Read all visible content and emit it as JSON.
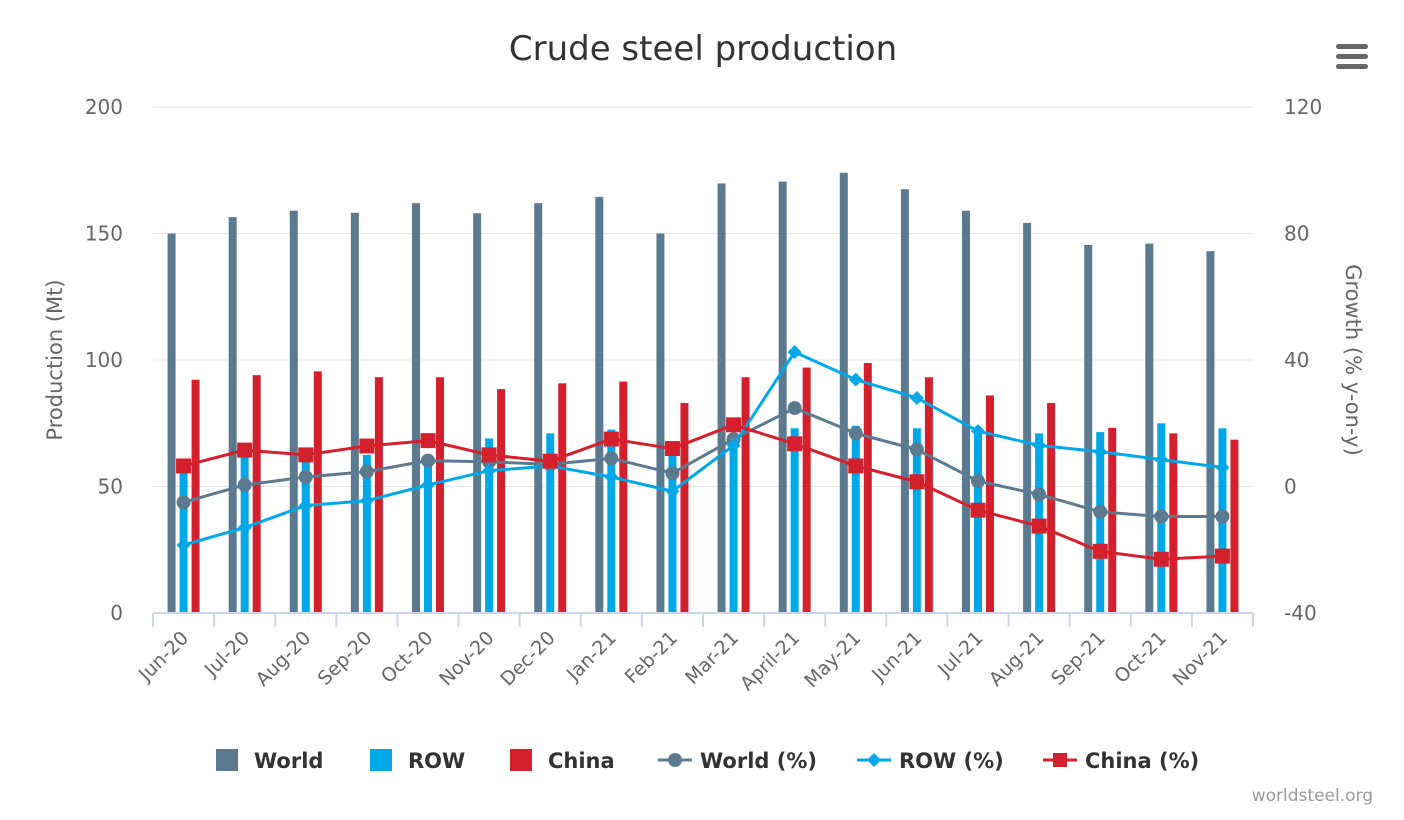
{
  "chart_data": {
    "type": "bar",
    "title": "Crude steel production",
    "ylabel": "Production (Mt)",
    "y2label": "Growth (% y-on-y)",
    "ylim": [
      0,
      200
    ],
    "y2lim": [
      -40,
      120
    ],
    "yticks": [
      0,
      50,
      100,
      150,
      200
    ],
    "y2ticks": [
      -40,
      0,
      40,
      80,
      120
    ],
    "grid": true,
    "legend_position": "bottom-center",
    "categories": [
      "Jun-20",
      "Jul-20",
      "Aug-20",
      "Sep-20",
      "Oct-20",
      "Nov-20",
      "Dec-20",
      "Jan-21",
      "Feb-21",
      "Mar-21",
      "April-21",
      "May-21",
      "Jun-21",
      "Jul-21",
      "Aug-21",
      "Sep-21",
      "Oct-21",
      "Nov-21"
    ],
    "bar_series": [
      {
        "name": "World",
        "color": "#5c7a8f",
        "axis": "left",
        "values": [
          150.0,
          156.5,
          159.0,
          158.2,
          162.0,
          158.0,
          162.0,
          164.5,
          150.0,
          169.8,
          170.5,
          174.0,
          167.5,
          159.0,
          154.2,
          145.5,
          146.0,
          143.0
        ]
      },
      {
        "name": "ROW",
        "color": "#00a8e8",
        "axis": "left",
        "values": [
          55.5,
          63.5,
          61.5,
          62.5,
          60.5,
          69.0,
          71.0,
          72.5,
          67.5,
          69.5,
          73.0,
          74.0,
          73.0,
          72.5,
          71.0,
          71.5,
          75.0,
          73.0
        ]
      },
      {
        "name": "China",
        "color": "#d4202d",
        "axis": "left",
        "values": [
          92.2,
          94.0,
          95.5,
          93.2,
          93.2,
          88.5,
          90.8,
          91.5,
          83.0,
          93.2,
          97.0,
          98.8,
          93.2,
          86.0,
          83.0,
          73.2,
          71.0,
          68.5
        ]
      }
    ],
    "line_series": [
      {
        "name": "World (%)",
        "color": "#5c7a8f",
        "marker": "circle",
        "axis": "right",
        "values": [
          -5.0,
          0.5,
          3.0,
          4.7,
          8.2,
          7.8,
          7.0,
          8.9,
          4.2,
          15.0,
          24.8,
          16.8,
          11.7,
          1.7,
          -2.5,
          -8.0,
          -9.5,
          -9.5
        ]
      },
      {
        "name": "ROW (%)",
        "color": "#00a8e8",
        "marker": "diamond",
        "axis": "right",
        "values": [
          -18.5,
          -13.0,
          -6.0,
          -4.5,
          0.5,
          5.0,
          6.5,
          3.0,
          -1.5,
          13.0,
          42.5,
          33.8,
          28.0,
          17.5,
          13.0,
          11.0,
          8.5,
          6.0
        ]
      },
      {
        "name": "China (%)",
        "color": "#d4202d",
        "marker": "square",
        "axis": "right",
        "values": [
          6.5,
          11.5,
          10.0,
          12.8,
          14.5,
          10.0,
          8.0,
          15.0,
          12.0,
          19.5,
          13.5,
          6.5,
          1.5,
          -7.5,
          -12.5,
          -20.5,
          -23.0,
          -22.0
        ]
      }
    ]
  },
  "legend": [
    {
      "label": "World",
      "kind": "bar",
      "color": "#5c7a8f"
    },
    {
      "label": "ROW",
      "kind": "bar",
      "color": "#00a8e8"
    },
    {
      "label": "China",
      "kind": "bar",
      "color": "#d4202d"
    },
    {
      "label": "World (%)",
      "kind": "line",
      "marker": "circle",
      "color": "#5c7a8f"
    },
    {
      "label": "ROW (%)",
      "kind": "line",
      "marker": "diamond",
      "color": "#00a8e8"
    },
    {
      "label": "China (%)",
      "kind": "line",
      "marker": "square",
      "color": "#d4202d"
    }
  ],
  "menu": {
    "icon": "hamburger-menu-icon"
  },
  "credit": "worldsteel.org"
}
